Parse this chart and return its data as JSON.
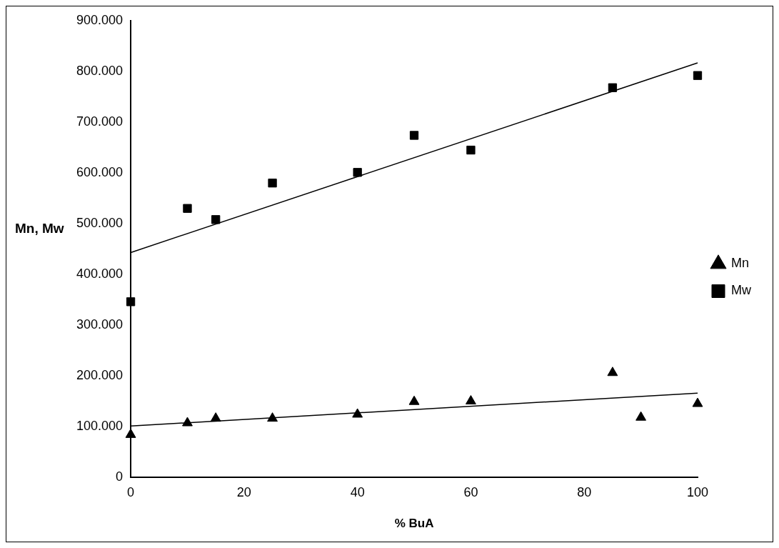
{
  "chart_data": {
    "type": "scatter",
    "xlabel": "% BuA",
    "ylabel": "Mn, Mw",
    "xlim": [
      0,
      100
    ],
    "xticks": [
      0,
      20,
      40,
      60,
      80,
      100
    ],
    "ylim": [
      0,
      900000
    ],
    "yticks": [
      0,
      {
        "value": 100000,
        "label": "100.000"
      },
      {
        "value": 200000,
        "label": "200.000"
      },
      {
        "value": 300000,
        "label": "300.000"
      },
      {
        "value": 400000,
        "label": "400.000"
      },
      {
        "value": 500000,
        "label": "500.000"
      },
      {
        "value": 600000,
        "label": "600.000"
      },
      {
        "value": 700000,
        "label": "700.000"
      },
      {
        "value": 800000,
        "label": "800.000"
      },
      {
        "value": 900000,
        "label": "900.000"
      }
    ],
    "grid": false,
    "legend": "right",
    "series": [
      {
        "name": "Mn",
        "marker": "triangle",
        "color": "#000000",
        "x": [
          0,
          10,
          15,
          25,
          40,
          50,
          60,
          85,
          90,
          100
        ],
        "values": [
          84000,
          107000,
          116000,
          116000,
          124000,
          149000,
          150000,
          206000,
          118000,
          145000
        ]
      },
      {
        "name": "Mw",
        "marker": "square",
        "color": "#000000",
        "x": [
          0,
          10,
          15,
          25,
          40,
          50,
          60,
          85,
          100
        ],
        "values": [
          346000,
          530000,
          508000,
          580000,
          601000,
          674000,
          645000,
          768000,
          792000
        ]
      },
      {
        "type": "line",
        "marker": "none",
        "color": "#000000",
        "x": [
          0,
          100
        ],
        "values": [
          101000,
          166000
        ]
      },
      {
        "type": "line",
        "marker": "none",
        "color": "#000000",
        "x": [
          0,
          100
        ],
        "values": [
          443000,
          817000
        ]
      }
    ]
  }
}
